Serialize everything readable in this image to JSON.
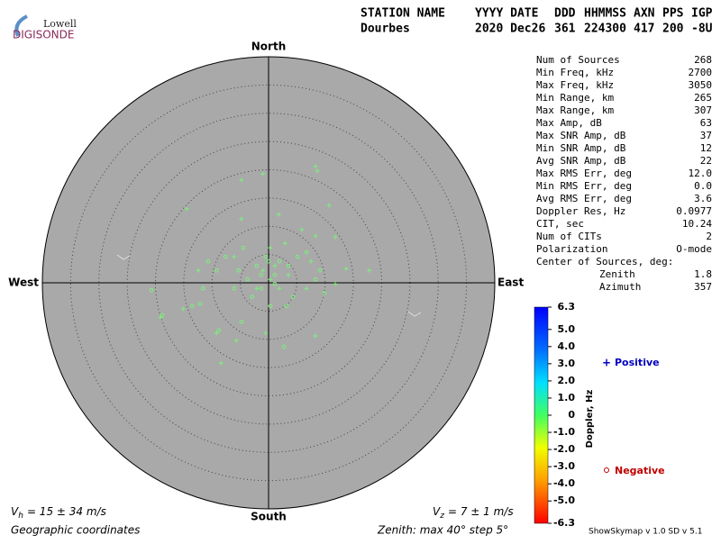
{
  "logo": {
    "top": "Lowell",
    "bottom": "DIGISONDE"
  },
  "header": {
    "labels": [
      "STATION NAME",
      "YYYY DATE",
      "DDD",
      "HHMMSS",
      "AXN",
      "PPS",
      "IGP"
    ],
    "values": [
      "Dourbes",
      "2020 Dec26",
      "361",
      "224300",
      "417",
      "200",
      "-8U"
    ]
  },
  "skymap": {
    "north": "North",
    "south": "South",
    "east": "East",
    "west": "West",
    "radius_deg": 40,
    "ring_step_deg": 5,
    "point_color": "#7cf07c",
    "plus_points": [
      [
        8.3,
        20.6
      ],
      [
        8.6,
        19.8
      ],
      [
        -1.0,
        19.3
      ],
      [
        -4.8,
        18.2
      ],
      [
        -14.5,
        13.1
      ],
      [
        1.8,
        12.1
      ],
      [
        10.7,
        13.7
      ],
      [
        -4.8,
        11.3
      ],
      [
        5.9,
        9.4
      ],
      [
        8.3,
        8.3
      ],
      [
        11.8,
        8.1
      ],
      [
        2.9,
        7.0
      ],
      [
        -6.1,
        4.6
      ],
      [
        0.3,
        6.2
      ],
      [
        7.5,
        3.8
      ],
      [
        -12.4,
        2.2
      ],
      [
        13.7,
        2.5
      ],
      [
        17.8,
        2.2
      ],
      [
        -9.2,
        -8.9
      ],
      [
        -5.7,
        -10.2
      ],
      [
        -0.5,
        -8.9
      ],
      [
        -8.4,
        -14.2
      ],
      [
        8.3,
        -9.4
      ],
      [
        -19.1,
        -6.1
      ],
      [
        -15.1,
        -4.6
      ],
      [
        0.3,
        0.6
      ],
      [
        1.9,
        -1.0
      ],
      [
        -2.1,
        -1.0
      ],
      [
        1.1,
        3.0
      ],
      [
        6.7,
        -1.0
      ],
      [
        11.8,
        -0.2
      ],
      [
        3.5,
        1.4
      ],
      [
        -1.0,
        2.2
      ]
    ],
    "circle_points": [
      [
        0,
        3.8
      ],
      [
        -1.3,
        1.4
      ],
      [
        1.1,
        1.4
      ],
      [
        -2.1,
        3.0
      ],
      [
        1.9,
        3.8
      ],
      [
        -3.7,
        0.6
      ],
      [
        3.5,
        3.0
      ],
      [
        -5.3,
        2.2
      ],
      [
        -7.6,
        4.6
      ],
      [
        -9.2,
        2.2
      ],
      [
        -10.7,
        3.8
      ],
      [
        -11.6,
        -1.0
      ],
      [
        -13.5,
        -4.1
      ],
      [
        -12.1,
        -3.7
      ],
      [
        -8.8,
        -8.4
      ],
      [
        -2.9,
        -2.5
      ],
      [
        0.3,
        -4.1
      ],
      [
        3.2,
        -4.1
      ],
      [
        4.3,
        -2.5
      ],
      [
        8.3,
        0.6
      ],
      [
        9.1,
        2.2
      ],
      [
        9.9,
        -1.8
      ],
      [
        6.7,
        5.4
      ],
      [
        5.1,
        4.6
      ],
      [
        -6.1,
        -1.0
      ],
      [
        2.7,
        -11.3
      ],
      [
        -4.5,
        6.2
      ],
      [
        -0.5,
        4.6
      ],
      [
        1.1,
        -0.2
      ],
      [
        -1.3,
        -1.0
      ],
      [
        -4.8,
        -6.9
      ],
      [
        -20.7,
        -1.3
      ],
      [
        -18.8,
        -5.7
      ]
    ]
  },
  "stats": {
    "rows": [
      [
        "Num of Sources",
        "268"
      ],
      [
        "Min Freq, kHz",
        "2700"
      ],
      [
        "Max Freq, kHz",
        "3050"
      ],
      [
        "Min Range, km",
        "265"
      ],
      [
        "Max Range, km",
        "307"
      ],
      [
        "Max Amp, dB",
        "63"
      ],
      [
        "Max SNR Amp, dB",
        "37"
      ],
      [
        "Min SNR Amp, dB",
        "12"
      ],
      [
        "Avg SNR Amp, dB",
        "22"
      ],
      [
        "Max RMS Err, deg",
        "12.0"
      ],
      [
        "Min RMS Err, deg",
        "0.0"
      ],
      [
        "Avg RMS Err, deg",
        "3.6"
      ],
      [
        "Doppler Res, Hz",
        "0.0977"
      ],
      [
        "CIT, sec",
        "10.24"
      ],
      [
        "Num of CITs",
        "2"
      ],
      [
        "Polarization",
        "O-mode"
      ]
    ],
    "center_title": "Center of Sources, deg:",
    "center_rows": [
      [
        "Zenith",
        "1.8"
      ],
      [
        "Azimuth",
        "357"
      ]
    ]
  },
  "colorbar": {
    "title": "Doppler, Hz",
    "lim": [
      -6.3,
      6.3
    ],
    "ticks": [
      {
        "value": 6.3,
        "label": "6.3"
      },
      {
        "value": 5,
        "label": "5.0"
      },
      {
        "value": 4,
        "label": "4.0"
      },
      {
        "value": 3,
        "label": "3.0"
      },
      {
        "value": 2,
        "label": "2.0"
      },
      {
        "value": 1,
        "label": "1.0"
      },
      0,
      {
        "value": -1,
        "label": "-1.0"
      },
      {
        "value": -2,
        "label": "-2.0"
      },
      {
        "value": -3,
        "label": "-3.0"
      },
      {
        "value": -4,
        "label": "-4.0"
      },
      {
        "value": -5,
        "label": "-5.0"
      },
      {
        "value": -6.3,
        "label": "-6.3"
      }
    ]
  },
  "legend": {
    "positive": "Positive",
    "negative": "Negative"
  },
  "footer": {
    "vh": {
      "symbol": "V",
      "subscript": "h",
      "text": "= 15 ± 34 m/s"
    },
    "vz": {
      "symbol": "V",
      "subscript": "z",
      "text": "= 7 ± 1 m/s"
    },
    "coordinates": "Geographic coordinates",
    "zenith": "Zenith: max 40°  step 5°",
    "version": "ShowSkymap v 1.0  SD v 5.1"
  }
}
